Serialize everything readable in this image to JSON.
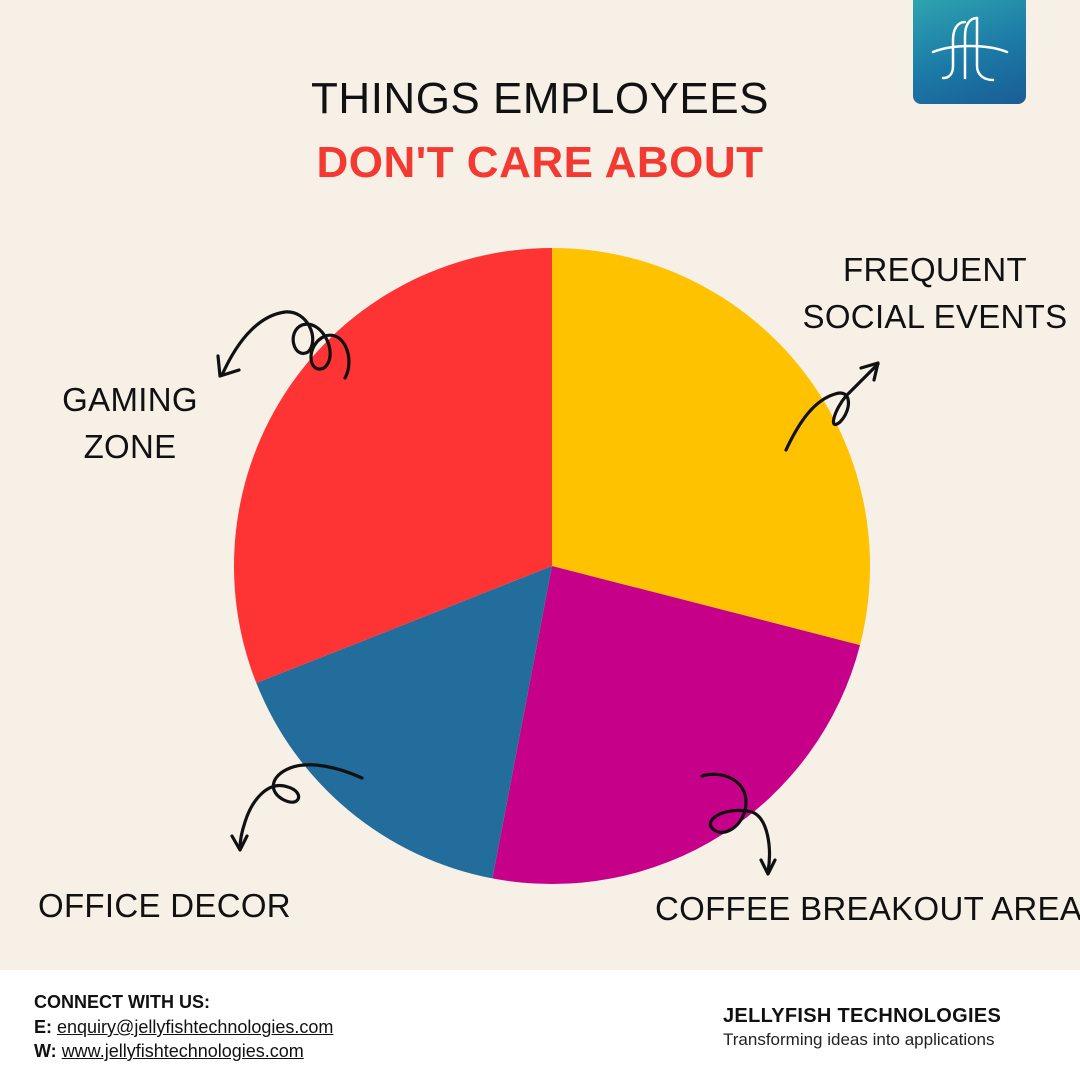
{
  "header": {
    "title_line1": "THINGS EMPLOYEES",
    "title_line2": "DON'T CARE ABOUT"
  },
  "chart_data": {
    "type": "pie",
    "title": "THINGS EMPLOYEES DON'T CARE ABOUT",
    "slices": [
      {
        "label": "FREQUENT SOCIAL EVENTS",
        "value": 29,
        "color": "#fec200"
      },
      {
        "label": "COFFEE BREAKOUT AREA",
        "value": 24,
        "color": "#c7008a"
      },
      {
        "label": "OFFICE DECOR",
        "value": 16,
        "color": "#226d9c"
      },
      {
        "label": "GAMING ZONE",
        "value": 31,
        "color": "#fe3333"
      }
    ],
    "start_angle_deg": 0,
    "direction": "clockwise",
    "legend": "none"
  },
  "labels": {
    "social_line1": "FREQUENT",
    "social_line2": "SOCIAL EVENTS",
    "gaming_line1": "GAMING",
    "gaming_line2": "ZONE",
    "office": "OFFICE DECOR",
    "coffee": "COFFEE BREAKOUT AREA"
  },
  "footer": {
    "connect_title": "CONNECT WITH US:",
    "email_label": "E:",
    "email": "enquiry@jellyfishtechnologies.com",
    "web_label": "W:",
    "website": "www.jellyfishtechnologies.com",
    "company": "JELLYFISH TECHNOLOGIES",
    "tagline": "Transforming ideas into applications"
  },
  "icons": {
    "logo": "jellyfish-logo-icon",
    "arrows": "hand-drawn-arrow-icon"
  },
  "colors": {
    "background": "#f6f0e7",
    "title_accent": "#f23a33",
    "logo_gradient_start": "#2fa3b0",
    "logo_gradient_end": "#1a5d94"
  }
}
